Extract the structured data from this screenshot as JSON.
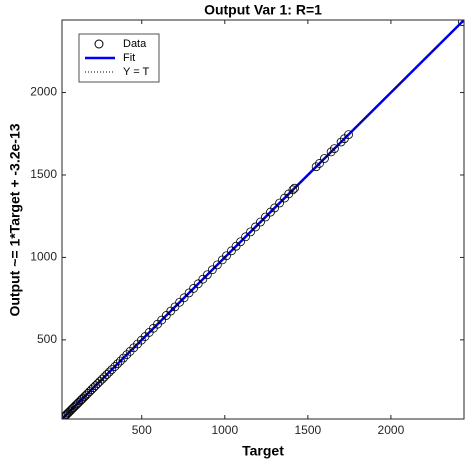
{
  "chart_data": {
    "type": "scatter",
    "title": "Output Var 1: R=1",
    "x_label": "Target",
    "y_label": "Output ~= 1*Target + -3.2e-13",
    "xlim": [
      20,
      2440
    ],
    "ylim": [
      20,
      2440
    ],
    "xticks": [
      500,
      1000,
      1500,
      2000
    ],
    "yticks": [
      500,
      1000,
      1500,
      2000
    ],
    "grid": false,
    "legend": "northwest",
    "series": [
      {
        "name": "Data",
        "style": "marker",
        "color": "#000000",
        "x": [
          35,
          42,
          48,
          55,
          60,
          68,
          75,
          82,
          90,
          98,
          105,
          112,
          120,
          130,
          138,
          146,
          155,
          165,
          175,
          186,
          198,
          210,
          222,
          235,
          248,
          262,
          275,
          290,
          305,
          320,
          338,
          355,
          372,
          390,
          410,
          430,
          452,
          475,
          498,
          520,
          545,
          570,
          595,
          620,
          648,
          675,
          700,
          728,
          755,
          785,
          812,
          840,
          868,
          895,
          925,
          955,
          985,
          1010,
          1040,
          1068,
          1095,
          1125,
          1155,
          1185,
          1215,
          1245,
          1275,
          1300,
          1330,
          1360,
          1385,
          1410,
          1420,
          1550,
          1570,
          1600,
          1640,
          1660,
          1700,
          1720,
          1745,
          2430
        ],
        "values": [
          35,
          42,
          48,
          55,
          60,
          68,
          75,
          82,
          90,
          98,
          105,
          112,
          120,
          130,
          138,
          146,
          155,
          165,
          175,
          186,
          198,
          210,
          222,
          235,
          248,
          262,
          275,
          290,
          305,
          320,
          338,
          355,
          372,
          390,
          410,
          430,
          452,
          475,
          498,
          520,
          545,
          570,
          595,
          620,
          648,
          675,
          700,
          728,
          755,
          785,
          812,
          840,
          868,
          895,
          925,
          955,
          985,
          1010,
          1040,
          1068,
          1095,
          1125,
          1155,
          1185,
          1215,
          1245,
          1275,
          1300,
          1330,
          1360,
          1385,
          1410,
          1420,
          1550,
          1570,
          1600,
          1640,
          1660,
          1700,
          1720,
          1745,
          2430
        ]
      },
      {
        "name": "Fit",
        "style": "line",
        "color": "#0000ff",
        "x": [
          20,
          2440
        ],
        "values": [
          20,
          2440
        ]
      },
      {
        "name": "Y = T",
        "style": "dotted",
        "color": "#000000",
        "x": [
          20,
          2440
        ],
        "values": [
          20,
          2440
        ]
      }
    ]
  }
}
